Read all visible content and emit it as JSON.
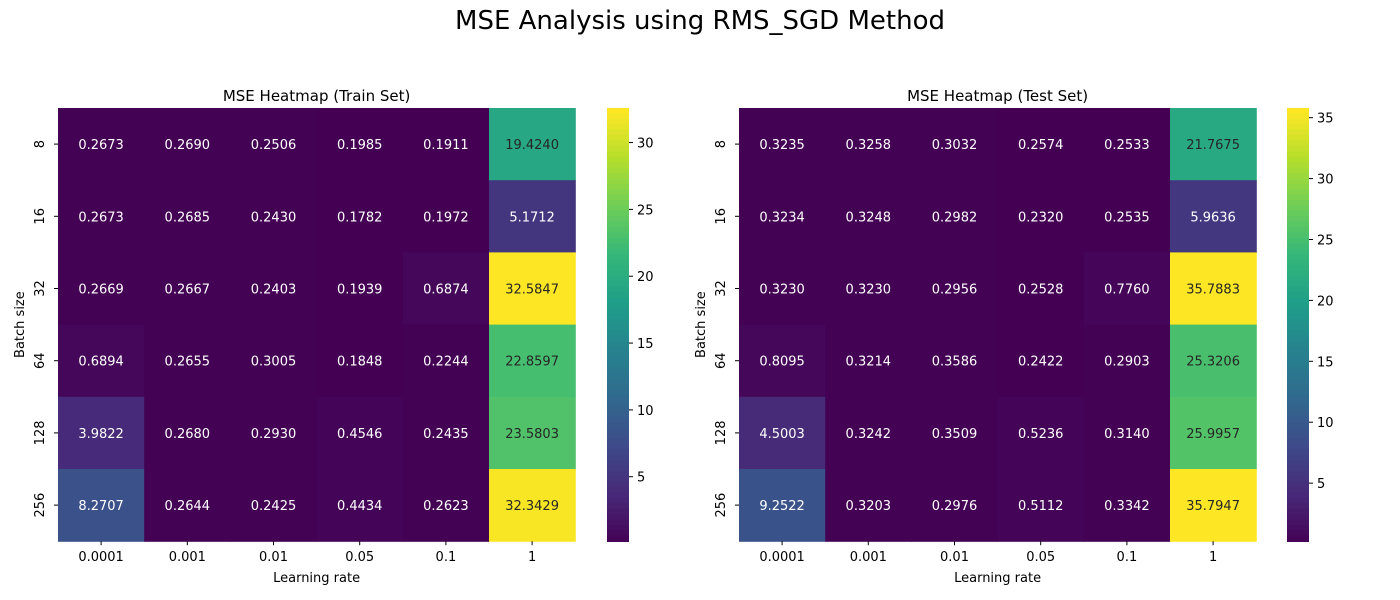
{
  "suptitle": "MSE Analysis using RMS_SGD Method",
  "colormap": {
    "name": "viridis",
    "stops": [
      "#440154",
      "#482878",
      "#3e4989",
      "#31688e",
      "#26828e",
      "#1f9e89",
      "#35b779",
      "#6ece58",
      "#b5de2b",
      "#fde725"
    ]
  },
  "text_colors": {
    "dark_cell": "#ffffff",
    "light_cell": "#262626"
  },
  "chart_data": [
    {
      "type": "heatmap",
      "title": "MSE Heatmap (Train Set)",
      "xlabel": "Learning rate",
      "ylabel": "Batch size",
      "x": [
        "0.0001",
        "0.001",
        "0.01",
        "0.05",
        "0.1",
        "1"
      ],
      "y": [
        "8",
        "16",
        "32",
        "64",
        "128",
        "256"
      ],
      "values": [
        [
          "0.2673",
          "0.2690",
          "0.2506",
          "0.1985",
          "0.1911",
          "19.4240"
        ],
        [
          "0.2673",
          "0.2685",
          "0.2430",
          "0.1782",
          "0.1972",
          "5.1712"
        ],
        [
          "0.2669",
          "0.2667",
          "0.2403",
          "0.1939",
          "0.6874",
          "32.5847"
        ],
        [
          "0.6894",
          "0.2655",
          "0.3005",
          "0.1848",
          "0.2244",
          "22.8597"
        ],
        [
          "3.9822",
          "0.2680",
          "0.2930",
          "0.4546",
          "0.2435",
          "23.5803"
        ],
        [
          "8.2707",
          "0.2644",
          "0.2425",
          "0.4434",
          "0.2623",
          "32.3429"
        ]
      ],
      "colorbar": {
        "ticks": [
          "5",
          "10",
          "15",
          "20",
          "25",
          "30"
        ]
      }
    },
    {
      "type": "heatmap",
      "title": "MSE Heatmap (Test Set)",
      "xlabel": "Learning rate",
      "ylabel": "Batch size",
      "x": [
        "0.0001",
        "0.001",
        "0.01",
        "0.05",
        "0.1",
        "1"
      ],
      "y": [
        "8",
        "16",
        "32",
        "64",
        "128",
        "256"
      ],
      "values": [
        [
          "0.3235",
          "0.3258",
          "0.3032",
          "0.2574",
          "0.2533",
          "21.7675"
        ],
        [
          "0.3234",
          "0.3248",
          "0.2982",
          "0.2320",
          "0.2535",
          "5.9636"
        ],
        [
          "0.3230",
          "0.3230",
          "0.2956",
          "0.2528",
          "0.7760",
          "35.7883"
        ],
        [
          "0.8095",
          "0.3214",
          "0.3586",
          "0.2422",
          "0.2903",
          "25.3206"
        ],
        [
          "4.5003",
          "0.3242",
          "0.3509",
          "0.5236",
          "0.3140",
          "25.9957"
        ],
        [
          "9.2522",
          "0.3203",
          "0.2976",
          "0.5112",
          "0.3342",
          "35.7947"
        ]
      ],
      "colorbar": {
        "ticks": [
          "5",
          "10",
          "15",
          "20",
          "25",
          "30",
          "35"
        ]
      }
    }
  ]
}
